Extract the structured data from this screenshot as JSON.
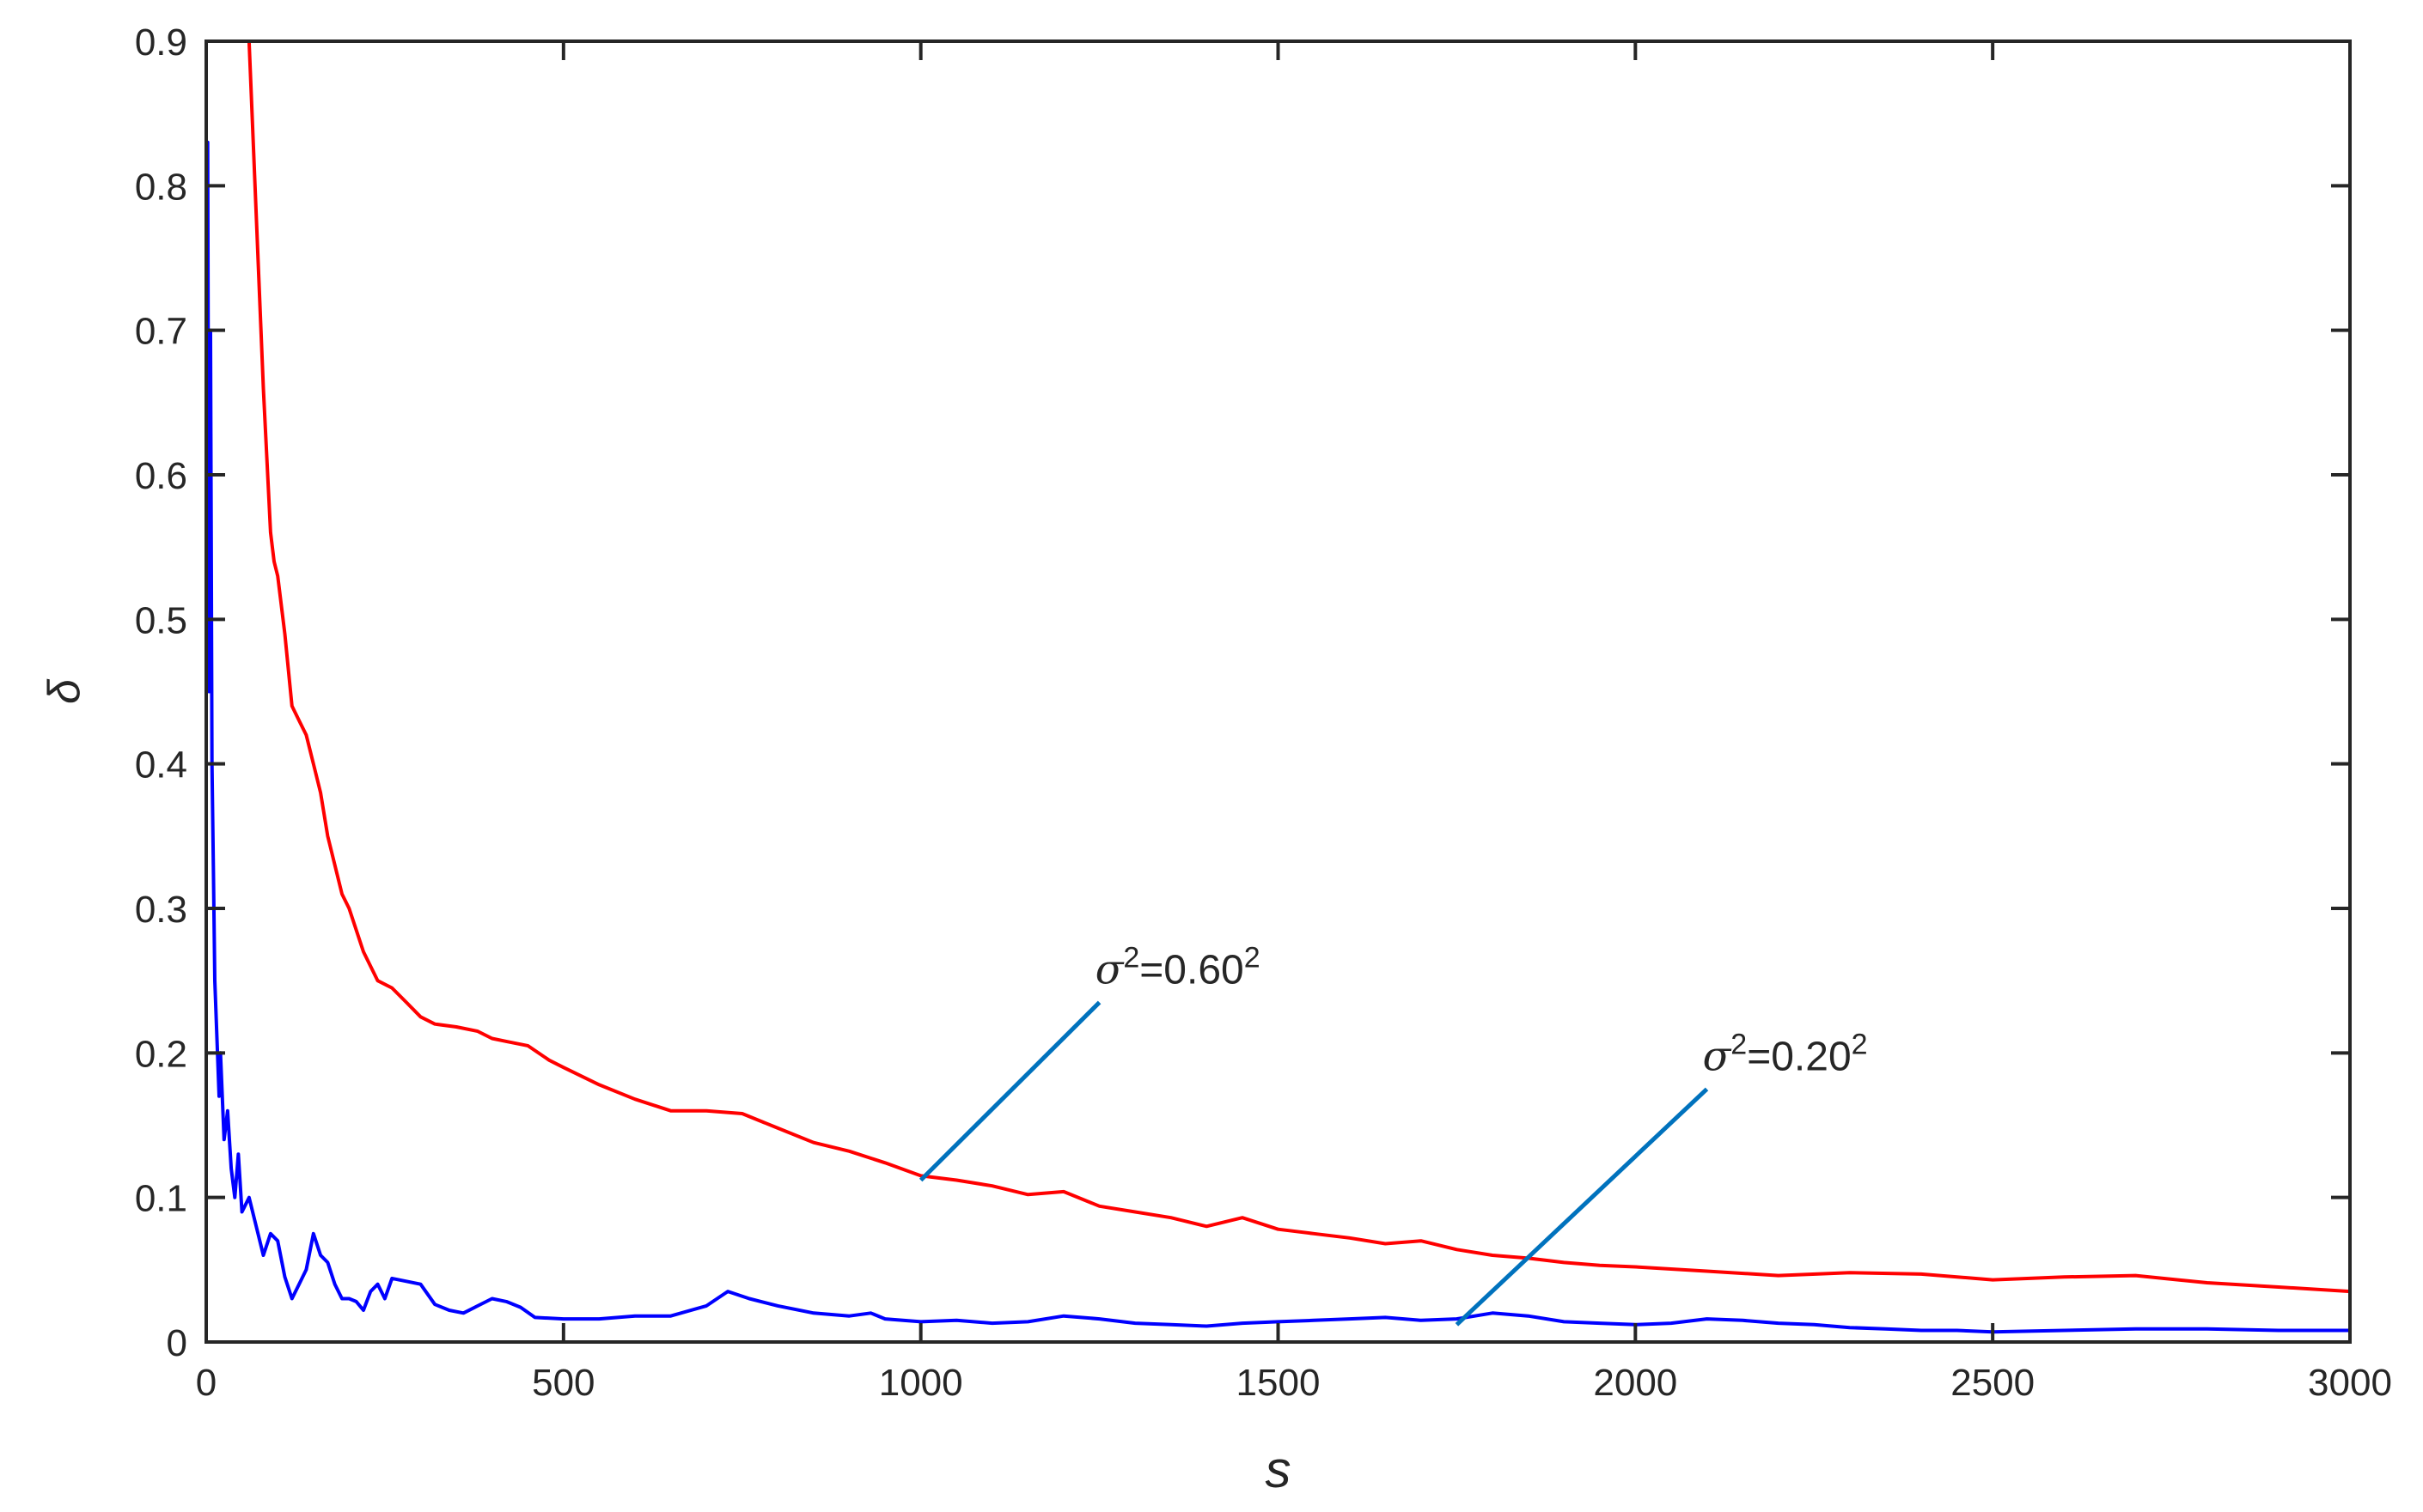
{
  "chart_data": {
    "type": "line",
    "title": "",
    "xlabel": "s",
    "ylabel": "δ",
    "xlim": [
      0,
      3000
    ],
    "ylim": [
      0,
      0.9
    ],
    "xticks": [
      0,
      500,
      1000,
      1500,
      2000,
      2500,
      3000
    ],
    "xtick_labels": [
      "0",
      "500",
      "1000",
      "1500",
      "2000",
      "2500",
      "3000"
    ],
    "yticks": [
      0,
      0.1,
      0.2,
      0.3,
      0.4,
      0.5,
      0.6,
      0.7,
      0.8,
      0.9
    ],
    "ytick_labels": [
      "0",
      "0.1",
      "0.2",
      "0.3",
      "0.4",
      "0.5",
      "0.6",
      "0.7",
      "0.8",
      "0.9"
    ],
    "grid": false,
    "box": true,
    "series": [
      {
        "color": "#ff0000",
        "x": [
          60,
          70,
          80,
          90,
          95,
          100,
          110,
          120,
          130,
          140,
          150,
          160,
          170,
          180,
          190,
          200,
          220,
          240,
          260,
          280,
          300,
          320,
          350,
          380,
          400,
          420,
          450,
          480,
          500,
          550,
          600,
          650,
          700,
          750,
          800,
          850,
          900,
          950,
          1000,
          1050,
          1100,
          1150,
          1200,
          1250,
          1300,
          1350,
          1400,
          1450,
          1500,
          1550,
          1600,
          1650,
          1700,
          1750,
          1800,
          1850,
          1900,
          1950,
          2000,
          2100,
          2200,
          2300,
          2400,
          2500,
          2600,
          2700,
          2800,
          2900,
          3000
        ],
        "y": [
          0.9,
          0.78,
          0.66,
          0.56,
          0.54,
          0.53,
          0.49,
          0.44,
          0.43,
          0.42,
          0.4,
          0.38,
          0.35,
          0.33,
          0.31,
          0.3,
          0.27,
          0.25,
          0.245,
          0.235,
          0.225,
          0.22,
          0.218,
          0.215,
          0.21,
          0.208,
          0.205,
          0.195,
          0.19,
          0.178,
          0.168,
          0.16,
          0.16,
          0.158,
          0.148,
          0.138,
          0.132,
          0.124,
          0.115,
          0.112,
          0.108,
          0.102,
          0.104,
          0.094,
          0.09,
          0.086,
          0.08,
          0.086,
          0.078,
          0.075,
          0.072,
          0.068,
          0.07,
          0.064,
          0.06,
          0.058,
          0.055,
          0.053,
          0.052,
          0.049,
          0.046,
          0.048,
          0.047,
          0.043,
          0.045,
          0.046,
          0.041,
          0.038,
          0.035
        ]
      },
      {
        "color": "#0000ff",
        "x": [
          0,
          2,
          4,
          6,
          8,
          10,
          12,
          15,
          18,
          20,
          25,
          30,
          35,
          40,
          45,
          50,
          60,
          70,
          80,
          90,
          100,
          110,
          120,
          130,
          140,
          150,
          160,
          170,
          180,
          190,
          200,
          210,
          220,
          230,
          240,
          250,
          260,
          280,
          300,
          320,
          340,
          360,
          380,
          400,
          420,
          440,
          460,
          500,
          550,
          600,
          650,
          700,
          730,
          760,
          800,
          850,
          900,
          930,
          950,
          1000,
          1050,
          1100,
          1150,
          1200,
          1250,
          1300,
          1350,
          1400,
          1450,
          1500,
          1550,
          1600,
          1650,
          1700,
          1750,
          1800,
          1850,
          1900,
          1950,
          2000,
          2050,
          2100,
          2150,
          2200,
          2250,
          2300,
          2350,
          2400,
          2450,
          2500,
          2600,
          2700,
          2800,
          2900,
          3000
        ],
        "y": [
          0.62,
          0.83,
          0.45,
          0.7,
          0.4,
          0.33,
          0.25,
          0.21,
          0.17,
          0.2,
          0.14,
          0.16,
          0.12,
          0.1,
          0.13,
          0.09,
          0.1,
          0.08,
          0.06,
          0.075,
          0.07,
          0.045,
          0.03,
          0.04,
          0.05,
          0.075,
          0.06,
          0.055,
          0.04,
          0.03,
          0.03,
          0.028,
          0.022,
          0.035,
          0.04,
          0.03,
          0.044,
          0.042,
          0.04,
          0.026,
          0.022,
          0.02,
          0.025,
          0.03,
          0.028,
          0.024,
          0.017,
          0.016,
          0.016,
          0.018,
          0.018,
          0.025,
          0.035,
          0.03,
          0.025,
          0.02,
          0.018,
          0.02,
          0.016,
          0.014,
          0.015,
          0.013,
          0.014,
          0.018,
          0.016,
          0.013,
          0.012,
          0.011,
          0.013,
          0.014,
          0.015,
          0.016,
          0.017,
          0.015,
          0.016,
          0.02,
          0.018,
          0.014,
          0.013,
          0.012,
          0.013,
          0.016,
          0.015,
          0.013,
          0.012,
          0.01,
          0.009,
          0.008,
          0.008,
          0.007,
          0.008,
          0.009,
          0.009,
          0.008,
          0.008
        ]
      }
    ],
    "annotations": [
      {
        "text_base": "σ",
        "sup1": "2",
        "text_mid": "=0.60",
        "sup2": "2",
        "color": "#0072bd",
        "arrow_from": [
          1250,
          0.235
        ],
        "arrow_to": [
          1000,
          0.112
        ]
      },
      {
        "text_base": "σ",
        "sup1": "2",
        "text_mid": "=0.20",
        "sup2": "2",
        "color": "#0072bd",
        "arrow_from": [
          2100,
          0.175
        ],
        "arrow_to": [
          1750,
          0.012
        ]
      }
    ]
  }
}
